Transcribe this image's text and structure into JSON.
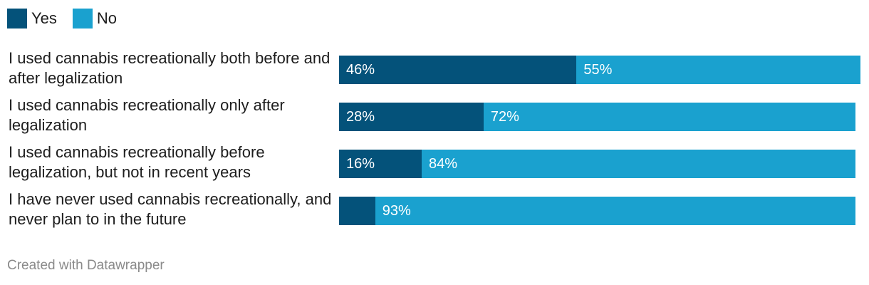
{
  "legend": {
    "yes_label": "Yes",
    "no_label": "No"
  },
  "colors": {
    "yes": "#04527a",
    "no": "#1aa1cf"
  },
  "chart_data": {
    "type": "bar",
    "orientation": "horizontal",
    "stacked": true,
    "categories": [
      "I used cannabis recreationally both before and after legalization",
      "I used cannabis recreationally only after legalization",
      "I used cannabis recreationally before legalization, but not in recent years",
      "I have never used cannabis recreationally, and never plan to in the future"
    ],
    "series": [
      {
        "name": "Yes",
        "values": [
          46,
          28,
          16,
          7
        ],
        "labels": [
          "46%",
          "28%",
          "16%",
          ""
        ]
      },
      {
        "name": "No",
        "values": [
          55,
          72,
          84,
          93
        ],
        "labels": [
          "55%",
          "72%",
          "84%",
          "93%"
        ]
      }
    ],
    "xlim": [
      0,
      101
    ],
    "legend": "top-left"
  },
  "footer": {
    "credit": "Created with Datawrapper"
  }
}
